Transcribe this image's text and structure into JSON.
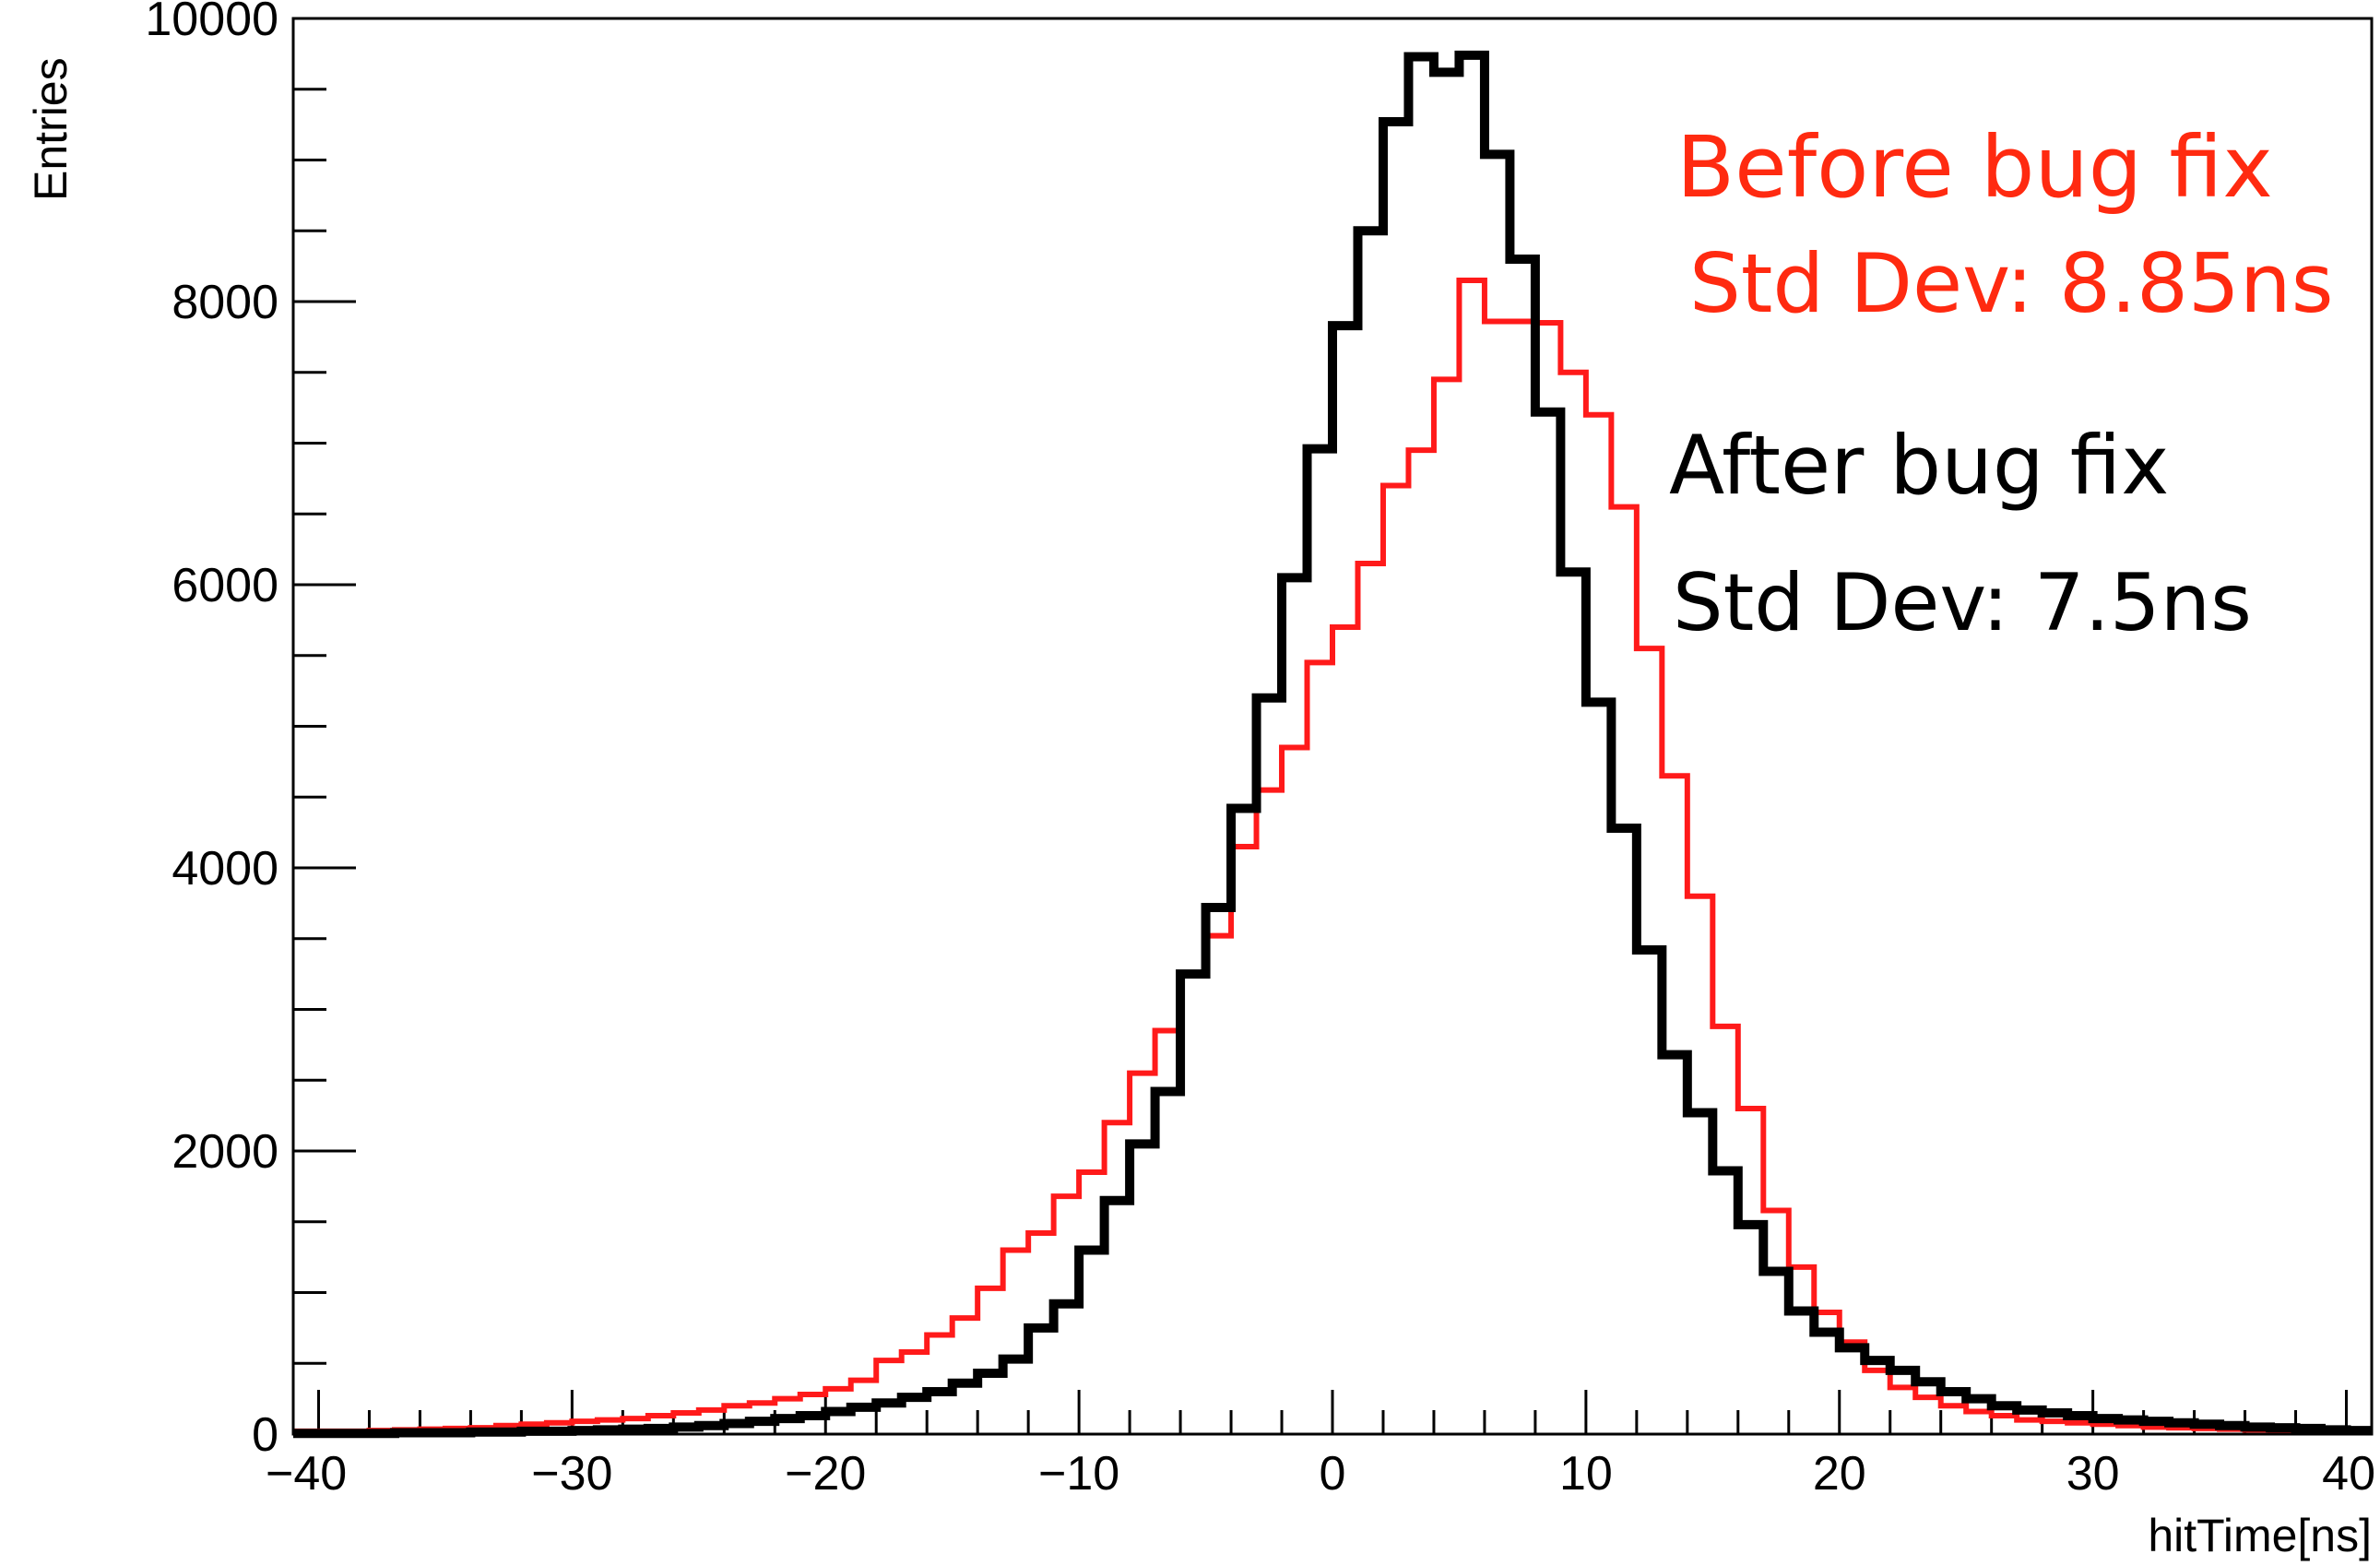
{
  "chart_data": {
    "type": "line",
    "title": "",
    "xlabel": "hitTime[ns]",
    "ylabel": "Entries",
    "xlim": [
      -41,
      41
    ],
    "ylim": [
      0,
      10000
    ],
    "x_ticks": [
      -40,
      -30,
      -20,
      -10,
      0,
      10,
      20,
      30,
      40
    ],
    "x_tick_labels": [
      "−40",
      "−30",
      "−20",
      "−10",
      "0",
      "10",
      "20",
      "30",
      "40"
    ],
    "y_ticks": [
      0,
      2000,
      4000,
      6000,
      8000,
      10000
    ],
    "y_tick_labels": [
      "0",
      "2000",
      "4000",
      "6000",
      "8000",
      "10000"
    ],
    "grid": false,
    "bin_width": 1,
    "bin_start": -41,
    "colors": {
      "before": "#ff1a1a",
      "after": "#000000",
      "before_text": "#ff2a10",
      "after_text": "#000000"
    },
    "annotations": {
      "before_title": "Before bug fix",
      "before_std": "Std Dev: 8.85ns",
      "after_title": "After bug fix",
      "after_std": "Std Dev: 7.5ns"
    },
    "series": [
      {
        "key": "before",
        "values": [
          20,
          20,
          20,
          25,
          30,
          35,
          40,
          45,
          60,
          70,
          80,
          90,
          100,
          110,
          130,
          150,
          170,
          200,
          220,
          250,
          280,
          320,
          380,
          520,
          580,
          700,
          820,
          1030,
          1300,
          1420,
          1680,
          1850,
          2200,
          2550,
          2850,
          3250,
          3520,
          4150,
          4550,
          4850,
          5450,
          5700,
          6150,
          6700,
          6950,
          7450,
          8150,
          7860,
          7860,
          7850,
          7500,
          7200,
          6550,
          5550,
          4650,
          3800,
          2880,
          2300,
          1580,
          1180,
          860,
          650,
          450,
          330,
          260,
          200,
          160,
          130,
          100,
          90,
          80,
          70,
          60,
          50,
          45,
          40,
          35,
          30,
          25,
          20,
          20,
          20
        ]
      },
      {
        "key": "after",
        "values": [
          5,
          5,
          5,
          5,
          10,
          10,
          10,
          15,
          15,
          20,
          20,
          25,
          30,
          35,
          40,
          50,
          60,
          75,
          90,
          110,
          130,
          160,
          190,
          220,
          260,
          300,
          360,
          430,
          530,
          750,
          920,
          1300,
          1650,
          2050,
          2420,
          3250,
          3720,
          4420,
          5200,
          6050,
          6960,
          7830,
          8500,
          9270,
          9730,
          9620,
          9740,
          9040,
          8300,
          7220,
          6090,
          5170,
          4280,
          3420,
          2680,
          2270,
          1860,
          1480,
          1150,
          870,
          720,
          610,
          520,
          450,
          370,
          300,
          250,
          200,
          170,
          150,
          130,
          110,
          100,
          90,
          80,
          70,
          60,
          50,
          45,
          40,
          30,
          25
        ]
      }
    ]
  }
}
